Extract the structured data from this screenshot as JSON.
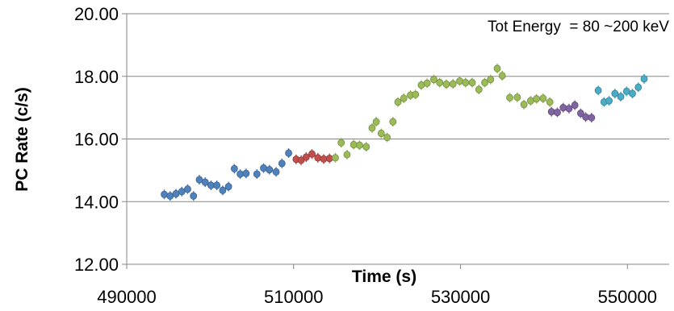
{
  "chart_data": {
    "type": "scatter",
    "title": "",
    "xlabel": "Time (s)",
    "ylabel": "PC Rate (c/s)",
    "annotation": "Tot Energy  = 80 ~200 keV",
    "xlim": [
      490000,
      555000
    ],
    "ylim": [
      12.0,
      20.0
    ],
    "xticks": [
      490000,
      510000,
      530000,
      550000
    ],
    "xtick_labels": [
      "490000",
      "510000",
      "530000",
      "550000"
    ],
    "yticks": [
      12.0,
      14.0,
      16.0,
      18.0,
      20.0
    ],
    "ytick_labels": [
      "12.00",
      "14.00",
      "16.00",
      "18.00",
      "20.00"
    ],
    "grid": "horizontal",
    "series": [
      {
        "color": "#4f81bd",
        "x": [
          494500,
          495200,
          495900,
          496600,
          497300,
          498000,
          498700,
          499400,
          500100,
          500800,
          501500,
          502200,
          502900,
          503600,
          504300,
          505600,
          506400,
          507100,
          507900,
          508600,
          509400
        ],
        "y": [
          14.23,
          14.18,
          14.25,
          14.32,
          14.4,
          14.18,
          14.7,
          14.62,
          14.52,
          14.52,
          14.36,
          14.48,
          15.05,
          14.88,
          14.9,
          14.88,
          15.07,
          15.02,
          14.95,
          15.22,
          15.55
        ]
      },
      {
        "color": "#c0504d",
        "x": [
          510300,
          510900,
          511500,
          512200,
          512900,
          513600,
          514300
        ],
        "y": [
          15.35,
          15.32,
          15.42,
          15.52,
          15.4,
          15.36,
          15.38
        ]
      },
      {
        "color": "#9bbb59",
        "x": [
          515000,
          515700,
          516400,
          517200,
          517900,
          518700,
          519400,
          519900,
          520500,
          521200,
          521900,
          522500,
          523200,
          524000,
          524600,
          525300,
          526000,
          526800,
          527500,
          528300,
          529100,
          529900,
          530600,
          531400,
          532200,
          532900,
          533600,
          534400,
          535000,
          535900,
          536800,
          537600,
          538400,
          539100,
          539900,
          540700
        ],
        "y": [
          15.4,
          15.88,
          15.5,
          15.82,
          15.8,
          15.75,
          16.35,
          16.55,
          16.18,
          16.05,
          16.55,
          17.18,
          17.3,
          17.4,
          17.42,
          17.72,
          17.78,
          17.9,
          17.8,
          17.75,
          17.76,
          17.85,
          17.8,
          17.8,
          17.58,
          17.8,
          17.9,
          18.25,
          18.02,
          17.32,
          17.33,
          17.1,
          17.22,
          17.28,
          17.3,
          17.18
        ]
      },
      {
        "color": "#8064a2",
        "x": [
          540900,
          541600,
          542300,
          543000,
          543700,
          544400,
          545000,
          545700
        ],
        "y": [
          16.87,
          16.85,
          17.0,
          16.97,
          17.08,
          16.82,
          16.7,
          16.68
        ]
      },
      {
        "color": "#4bacc6",
        "x": [
          546500,
          547200,
          547800,
          548500,
          549200,
          549900,
          550600,
          551300,
          552000
        ],
        "y": [
          17.55,
          17.18,
          17.22,
          17.45,
          17.35,
          17.52,
          17.45,
          17.65,
          17.92
        ]
      }
    ]
  }
}
